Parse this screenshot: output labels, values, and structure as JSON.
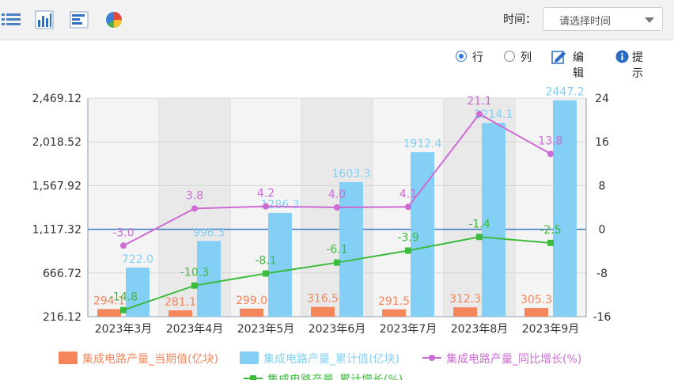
{
  "toolbar": {
    "icons": [
      "list-view-icon",
      "bar-chart-icon",
      "horizontal-bar-icon",
      "pie-chart-icon"
    ],
    "time_label": "时间：",
    "time_select_placeholder": "请选择时间"
  },
  "options": {
    "row_label": "行",
    "row_selected": true,
    "column_label": "列",
    "column_selected": false,
    "edit_label": "编辑",
    "tips_label": "提示"
  },
  "chart_data": {
    "type": "bar",
    "categories": [
      "2023年3月",
      "2023年4月",
      "2023年5月",
      "2023年6月",
      "2023年7月",
      "2023年8月",
      "2023年9月"
    ],
    "y_left": {
      "ticks": [
        "2,469.12",
        "2,018.52",
        "1,567.92",
        "1,117.32",
        "666.72",
        "216.12"
      ],
      "min": 216.12,
      "max": 2469.12
    },
    "y_right": {
      "ticks": [
        "24",
        "16",
        "8",
        "0",
        "-8",
        "-16"
      ],
      "min": -16,
      "max": 24
    },
    "grid": true,
    "legend_position": "bottom",
    "series": [
      {
        "name": "集成电路产量_当期值(亿块)",
        "type": "bar",
        "axis": "left",
        "color": "#f5855a",
        "labelColor": "#f5855a",
        "values": [
          294.1,
          281.1,
          299.0,
          316.5,
          291.5,
          312.3,
          305.3
        ],
        "labels": [
          "294.1",
          "281.1",
          "299.0",
          "316.5",
          "291.5",
          "312.3",
          "305.3"
        ]
      },
      {
        "name": "集成电路产量_累计值(亿块)",
        "type": "bar",
        "axis": "left",
        "color": "#83cff6",
        "labelColor": "#83cff6",
        "values": [
          722.0,
          996.3,
          1286.3,
          1603.3,
          1912.4,
          2214.1,
          2447.2
        ],
        "labels": [
          "722.0",
          "996.3",
          "1286.3",
          "1603.3",
          "1912.4",
          "2214.1",
          "2447.2"
        ]
      },
      {
        "name": "集成电路产量_同比增长(%)",
        "type": "line",
        "axis": "right",
        "color": "#cc6bd3",
        "labelColor": "#cc6bd3",
        "marker": "circle",
        "values": [
          -3.0,
          3.8,
          4.2,
          4.0,
          4.1,
          21.1,
          13.8
        ],
        "labels": [
          "-3.0",
          "3.8",
          "4.2",
          "4.0",
          "4.1",
          "21.1",
          "13.8"
        ]
      },
      {
        "name": "集成电路产量_累计增长(%)",
        "type": "line",
        "axis": "right",
        "color": "#3dbb3d",
        "labelColor": "#3dbb3d",
        "marker": "square",
        "values": [
          -14.8,
          -10.3,
          -8.1,
          -6.1,
          -3.9,
          -1.4,
          -2.5
        ],
        "labels": [
          "-14.8",
          "-10.3",
          "-8.1",
          "-6.1",
          "-3.9",
          "-1.4",
          "-2.5"
        ]
      }
    ]
  }
}
